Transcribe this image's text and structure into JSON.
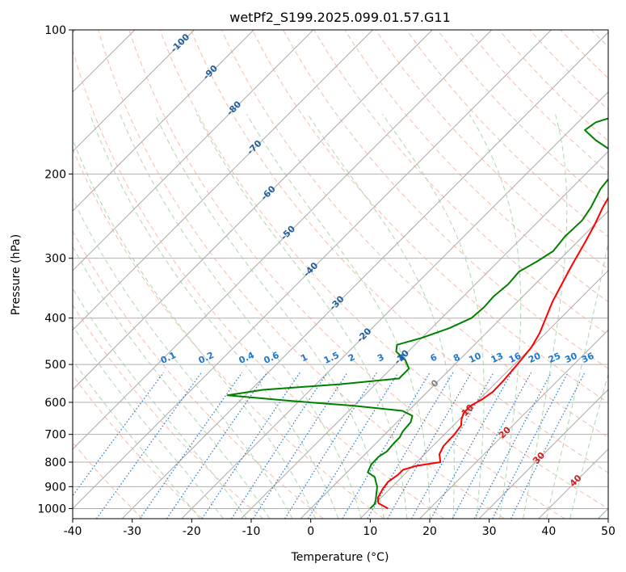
{
  "chart_data": {
    "type": "line",
    "title": "wetPf2_S199.2025.099.01.57.G11",
    "xlabel": "Temperature (°C)",
    "ylabel": "Pressure (hPa)",
    "xlim": [
      -40,
      50
    ],
    "ylim": [
      1050,
      100
    ],
    "y_scale": "log",
    "grid": true,
    "x_ticks": [
      "-40",
      "-30",
      "-20",
      "-10",
      "0",
      "10",
      "20",
      "30",
      "40",
      "50"
    ],
    "y_ticks": [
      "100",
      "200",
      "300",
      "400",
      "500",
      "600",
      "700",
      "800",
      "900",
      "1000"
    ],
    "series": [
      {
        "color": "#ff0000",
        "points": [
          [
            13.0,
            1000
          ],
          [
            10.5,
            975
          ],
          [
            9.5,
            950
          ],
          [
            8.8,
            910
          ],
          [
            8.5,
            880
          ],
          [
            9.0,
            850
          ],
          [
            9.0,
            830
          ],
          [
            10.5,
            815
          ],
          [
            14.0,
            800
          ],
          [
            12.5,
            770
          ],
          [
            11.8,
            740
          ],
          [
            11.7,
            700
          ],
          [
            11.3,
            670
          ],
          [
            10.3,
            650
          ],
          [
            9.6,
            630
          ],
          [
            9.6,
            610
          ],
          [
            10.5,
            590
          ],
          [
            11.0,
            570
          ],
          [
            10.9,
            540
          ],
          [
            10.5,
            500
          ],
          [
            10.0,
            460
          ],
          [
            9.0,
            430
          ],
          [
            7.5,
            400
          ],
          [
            5.9,
            370
          ],
          [
            4.5,
            340
          ],
          [
            3.0,
            310
          ],
          [
            1.5,
            280
          ],
          [
            0.0,
            255
          ],
          [
            -1.5,
            235
          ],
          [
            -2.8,
            215
          ],
          [
            -3.5,
            200
          ],
          [
            -4.0,
            190
          ],
          [
            -3.6,
            185
          ],
          [
            -1.5,
            180
          ],
          [
            3.0,
            175
          ],
          [
            7.0,
            170
          ],
          [
            9.0,
            166
          ],
          [
            10.0,
            160
          ],
          [
            11.0,
            152
          ],
          [
            12.0,
            145
          ],
          [
            13.0,
            136
          ],
          [
            14.0,
            128
          ],
          [
            15.0,
            120
          ],
          [
            16.5,
            114
          ],
          [
            19.0,
            109
          ],
          [
            23.5,
            100
          ]
        ]
      },
      {
        "color": "#008000",
        "points": [
          [
            10.0,
            1000
          ],
          [
            10.0,
            980
          ],
          [
            9.5,
            960
          ],
          [
            8.5,
            930
          ],
          [
            7.5,
            900
          ],
          [
            6.5,
            880
          ],
          [
            5.5,
            860
          ],
          [
            3.5,
            840
          ],
          [
            2.8,
            810
          ],
          [
            2.7,
            780
          ],
          [
            3.2,
            760
          ],
          [
            3.0,
            730
          ],
          [
            3.0,
            710
          ],
          [
            2.5,
            690
          ],
          [
            2.3,
            660
          ],
          [
            1.5,
            640
          ],
          [
            -1.0,
            625
          ],
          [
            -10.0,
            610
          ],
          [
            -22.0,
            595
          ],
          [
            -33.0,
            580
          ],
          [
            -28.0,
            565
          ],
          [
            -16.0,
            550
          ],
          [
            -7.0,
            535
          ],
          [
            -7.0,
            510
          ],
          [
            -9.0,
            490
          ],
          [
            -12.0,
            470
          ],
          [
            -13.0,
            455
          ],
          [
            -10.0,
            440
          ],
          [
            -7.0,
            420
          ],
          [
            -5.0,
            400
          ],
          [
            -4.7,
            380
          ],
          [
            -4.9,
            360
          ],
          [
            -4.5,
            340
          ],
          [
            -4.8,
            320
          ],
          [
            -3.5,
            305
          ],
          [
            -2.5,
            290
          ],
          [
            -3.0,
            270
          ],
          [
            -2.8,
            250
          ],
          [
            -3.5,
            235
          ],
          [
            -5.0,
            215
          ],
          [
            -5.5,
            200
          ],
          [
            -7.0,
            188
          ],
          [
            -10.0,
            178
          ],
          [
            -14.0,
            170
          ],
          [
            -17.5,
            162
          ],
          [
            -17.0,
            156
          ],
          [
            -14.0,
            150
          ],
          [
            -10.0,
            140
          ],
          [
            -7.0,
            130
          ],
          [
            -5.5,
            122
          ],
          [
            -4.0,
            113
          ],
          [
            -2.5,
            100
          ]
        ]
      }
    ],
    "reference_lines": {
      "isotherms": "solid grey, skewed 45°",
      "dry_adiabats": "dashed light red",
      "moist_adiabats": "dashed light green",
      "mixing_ratio": "dotted blue"
    },
    "annotations": {
      "mixing_ratio_labels": [
        "0.1",
        "0.2",
        "0.4",
        "0.6",
        "1",
        "1.5",
        "2",
        "3",
        "4",
        "6",
        "8",
        "10",
        "13",
        "16",
        "20",
        "25",
        "30",
        "36"
      ],
      "upper_isotherm_labels": [
        "-100",
        "-90",
        "-80",
        "-70",
        "-60",
        "-50",
        "-40",
        "-30",
        "-20",
        "-10"
      ],
      "lower_isotherm_labels": [
        "0",
        "10",
        "20",
        "30",
        "40"
      ]
    },
    "colors": {
      "temperature": "#ff0000",
      "dewpoint": "#008000",
      "isotherm": "#a9a9a9",
      "dry_adiabat": "#f5a58a",
      "moist_adiabat": "#9fd09f",
      "mixing_ratio": "#1f77d0",
      "isotherm_label_upper": "#1f5f9f",
      "isotherm_label_lower": "#cc2222"
    }
  }
}
